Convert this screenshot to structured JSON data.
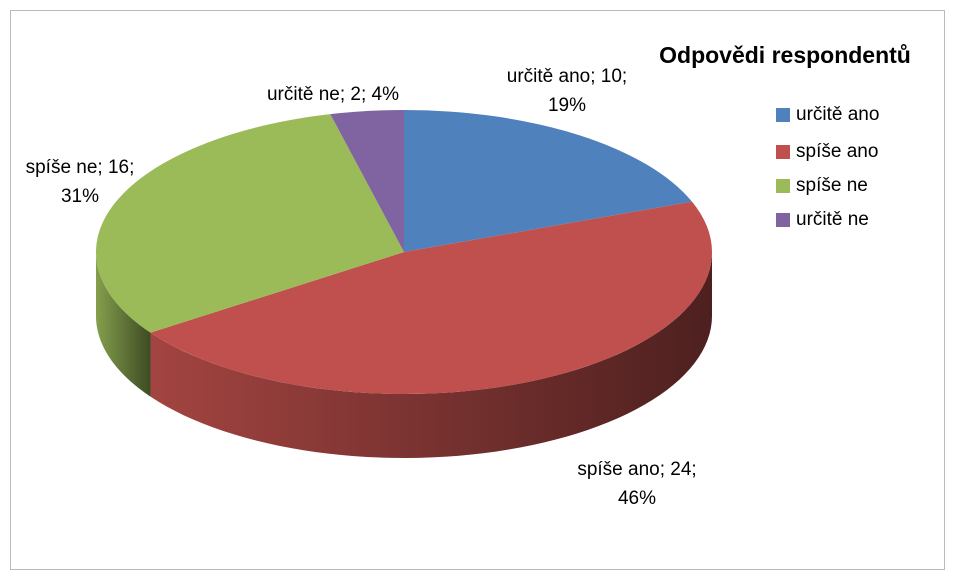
{
  "chart_data": {
    "type": "pie",
    "title": "Odpovědi respondentů",
    "categories": [
      "určitě ano",
      "spíše ano",
      "spíše ne",
      "určitě ne"
    ],
    "values": [
      10,
      24,
      16,
      2
    ],
    "value_labels": [
      [
        "určitě ano; 10;",
        "19%"
      ],
      [
        "spíše ano; 24;",
        "46%"
      ],
      [
        "spíše ne; 16;",
        "31%"
      ],
      [
        "určitě ne; 2; 4%"
      ]
    ],
    "colors": [
      "#4f81bd",
      "#c0504d",
      "#9bbb59",
      "#8064a2"
    ],
    "legend": "right"
  }
}
